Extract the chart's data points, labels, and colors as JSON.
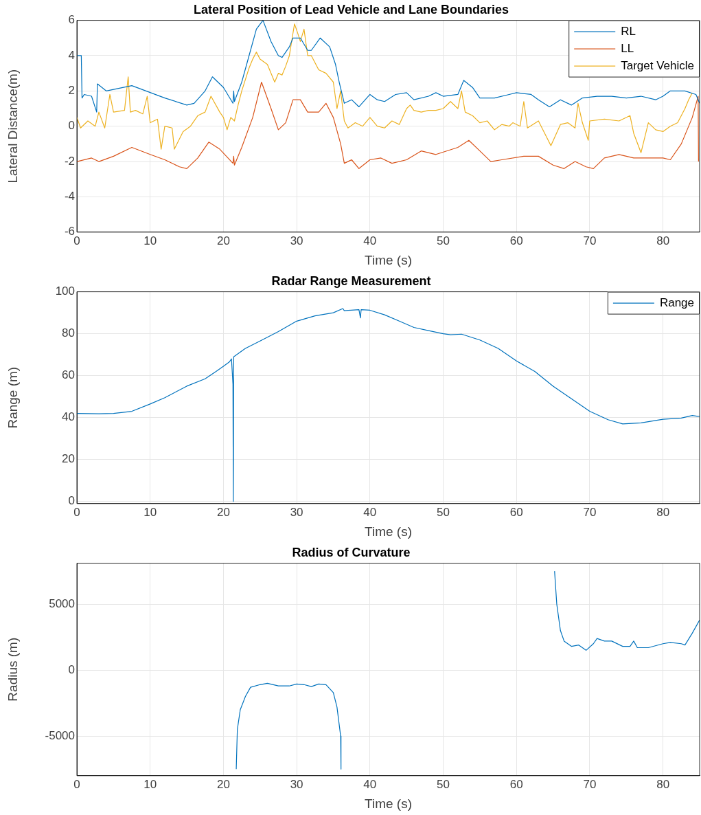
{
  "chart_data": [
    {
      "type": "line",
      "title": "Lateral Position of Lead Vehicle and Lane Boundaries",
      "xlabel": "Time (s)",
      "ylabel": "Lateral Distance(m)",
      "xlim": [
        0,
        85
      ],
      "xticks": [
        0,
        10,
        20,
        30,
        40,
        50,
        60,
        70,
        80
      ],
      "ylim": [
        -6,
        6
      ],
      "yticks": [
        -6,
        -4,
        -2,
        0,
        2,
        4,
        6
      ],
      "grid": true,
      "legend": "top right",
      "series": [
        {
          "name": "RL",
          "color": "#0072bd",
          "x": [
            0,
            0.6,
            0.7,
            1,
            2,
            2.7,
            2.8,
            4,
            7.5,
            12,
            15,
            16,
            17.5,
            18.5,
            20,
            21.3,
            21.4,
            21.5,
            22.5,
            23.5,
            24.5,
            25.4,
            26.5,
            27.5,
            28,
            29,
            29.5,
            30.5,
            31.5,
            32,
            33.2,
            34.5,
            35.3,
            35.8,
            36.5,
            37.5,
            38.5,
            40,
            41,
            42,
            43.5,
            45,
            46,
            48,
            49,
            50,
            52,
            52.8,
            54,
            55,
            57,
            59,
            60,
            62,
            63,
            64.5,
            66,
            67.5,
            69,
            71,
            73,
            75,
            77,
            79,
            80,
            81,
            83,
            84.5,
            85
          ],
          "values": [
            4,
            4,
            1.6,
            1.8,
            1.7,
            0.8,
            2.4,
            2,
            2.3,
            1.6,
            1.2,
            1.3,
            2,
            2.8,
            2.2,
            1.3,
            2,
            1.4,
            2.5,
            4,
            5.5,
            6,
            4.8,
            4,
            3.9,
            4.5,
            5,
            5,
            4.3,
            4.3,
            5,
            4.5,
            3.5,
            2.5,
            1.3,
            1.5,
            1.1,
            1.8,
            1.5,
            1.4,
            1.8,
            1.9,
            1.5,
            1.7,
            1.9,
            1.7,
            1.8,
            2.6,
            2.2,
            1.6,
            1.6,
            1.8,
            1.9,
            1.8,
            1.5,
            1.1,
            1.5,
            1.2,
            1.6,
            1.7,
            1.7,
            1.6,
            1.7,
            1.5,
            1.7,
            2,
            2,
            1.8,
            1.3
          ]
        },
        {
          "name": "LL",
          "color": "#d95319",
          "x": [
            0,
            2,
            3,
            5,
            7.5,
            10,
            12,
            14,
            15,
            16.5,
            18,
            19.5,
            21.3,
            21.4,
            21.5,
            22.5,
            24,
            25.2,
            26.5,
            27.5,
            28.5,
            29.5,
            30.5,
            31.5,
            33,
            34,
            35,
            36,
            36.5,
            37.5,
            38.5,
            40,
            41.5,
            43,
            45,
            47,
            49,
            52,
            53.5,
            55,
            56.5,
            58,
            61,
            63,
            65,
            66.5,
            68,
            69.5,
            70.5,
            72,
            74,
            76,
            78,
            80,
            81,
            82.5,
            84,
            84.8,
            84.85
          ],
          "values": [
            -2,
            -1.8,
            -2,
            -1.7,
            -1.2,
            -1.6,
            -1.9,
            -2.3,
            -2.4,
            -1.8,
            -0.9,
            -1.3,
            -2.1,
            -1.7,
            -2.2,
            -1.2,
            0.5,
            2.5,
            1,
            -0.2,
            0.2,
            1.5,
            1.5,
            0.8,
            0.8,
            1.3,
            0.5,
            -1,
            -2.1,
            -1.9,
            -2.4,
            -1.9,
            -1.8,
            -2.1,
            -1.9,
            -1.4,
            -1.6,
            -1.2,
            -0.8,
            -1.4,
            -2,
            -1.9,
            -1.7,
            -1.7,
            -2.2,
            -2.4,
            -2,
            -2.3,
            -2.4,
            -1.8,
            -1.6,
            -1.8,
            -1.8,
            -1.8,
            -1.9,
            -1,
            0.5,
            1.7,
            -2
          ]
        },
        {
          "name": "Target Vehicle",
          "color": "#edb120",
          "x": [
            0,
            0.5,
            1.5,
            2.5,
            3,
            3.8,
            4.5,
            5,
            6.5,
            7,
            7.3,
            8,
            9,
            9.6,
            10,
            11,
            11.5,
            12,
            13,
            13.3,
            14.5,
            15.5,
            16.5,
            17.5,
            18.3,
            19.5,
            20,
            20.5,
            21,
            21.5,
            22,
            22.5,
            23.5,
            24,
            24.5,
            25,
            26,
            27,
            27.5,
            28,
            28.5,
            29,
            29.7,
            30.2,
            30.5,
            31,
            31.5,
            32,
            33,
            34,
            35,
            35.5,
            36,
            36.5,
            37,
            38,
            39,
            40,
            41,
            42,
            43,
            44,
            45,
            45.5,
            46,
            47,
            48,
            49,
            50,
            51,
            52,
            52.5,
            53,
            54,
            55,
            56,
            57,
            58,
            59,
            59.5,
            60.5,
            61,
            61.5,
            63,
            64.7,
            66,
            67,
            68,
            68.4,
            69,
            69.8,
            70,
            72,
            74,
            75.5,
            76,
            77,
            78,
            79,
            80,
            81,
            82,
            83,
            83.5,
            84
          ],
          "values": [
            0.5,
            -0.1,
            0.3,
            0,
            0.8,
            -0.1,
            1.8,
            0.8,
            0.9,
            2.8,
            0.8,
            0.9,
            0.7,
            1.7,
            0.2,
            0.4,
            -1.3,
            0,
            -0.1,
            -1.3,
            -0.3,
            0,
            0.6,
            0.8,
            1.7,
            0.8,
            0.5,
            -0.2,
            0.5,
            0.3,
            1.2,
            2,
            3.3,
            3.8,
            4.2,
            3.8,
            3.5,
            2.5,
            3,
            2.9,
            3.4,
            4,
            5.8,
            5.2,
            4.8,
            5.5,
            4,
            4,
            3.2,
            3,
            2.5,
            1,
            2,
            0.3,
            -0.1,
            0.2,
            0,
            0.5,
            0,
            -0.1,
            0.3,
            0.1,
            1,
            1.2,
            0.9,
            0.8,
            0.9,
            0.9,
            1,
            1.4,
            1,
            2,
            0.8,
            0.6,
            0.2,
            0.3,
            -0.2,
            0.1,
            0,
            0.2,
            0,
            1.4,
            -0.1,
            0.3,
            -1.1,
            0.1,
            0.2,
            -0.1,
            1.3,
            0.2,
            -0.8,
            0.3,
            0.4,
            0.3,
            0.6,
            -0.4,
            -1.5,
            0.2,
            -0.2,
            -0.3,
            0,
            0.2,
            1,
            1.5,
            1.9
          ]
        }
      ]
    },
    {
      "type": "line",
      "title": "Radar Range Measurement",
      "xlabel": "Time (s)",
      "ylabel": "Range (m)",
      "xlim": [
        0,
        85
      ],
      "xticks": [
        0,
        10,
        20,
        30,
        40,
        50,
        60,
        70,
        80
      ],
      "ylim": [
        -1,
        100
      ],
      "yticks": [
        0,
        20,
        40,
        60,
        80,
        100
      ],
      "grid": true,
      "legend": "top right",
      "series": [
        {
          "name": "Range",
          "color": "#0072bd",
          "x": [
            0,
            3,
            5,
            7.5,
            10,
            12,
            15,
            17.5,
            19,
            20,
            20.8,
            21.1,
            21.3,
            21.35,
            21.4,
            23,
            25,
            27.5,
            30,
            32.5,
            35,
            36.3,
            36.5,
            38.5,
            38.7,
            38.8,
            40,
            42,
            44,
            46,
            48,
            50,
            51,
            52.5,
            55,
            57.5,
            60,
            62.5,
            65,
            67.5,
            70,
            72.5,
            74.5,
            77,
            80,
            82.5,
            84,
            85
          ],
          "values": [
            42,
            41.8,
            42,
            43,
            46.5,
            49.5,
            55,
            58.5,
            62,
            64.5,
            66.5,
            68,
            56,
            0,
            69,
            73,
            76.5,
            81,
            86,
            88.5,
            90,
            92,
            91,
            91.5,
            87.5,
            91.5,
            91.2,
            89,
            86,
            83,
            81.5,
            80,
            79.5,
            79.8,
            77,
            73,
            67,
            62,
            55,
            49,
            43,
            39,
            37,
            37.5,
            39.2,
            39.8,
            41,
            40.5
          ]
        }
      ]
    },
    {
      "type": "line",
      "title": "Radius of Curvature",
      "xlabel": "Time (s)",
      "ylabel": "Radius (m)",
      "xlim": [
        0,
        85
      ],
      "xticks": [
        0,
        10,
        20,
        30,
        40,
        50,
        60,
        70,
        80
      ],
      "ylim": [
        -8000,
        8100
      ],
      "yticks": [
        -5000,
        0,
        5000
      ],
      "grid": true,
      "series": [
        {
          "color": "#0072bd",
          "x": [
            21.75,
            21.9,
            22.3,
            23,
            23.7,
            25,
            26,
            27.5,
            29,
            30,
            31,
            32,
            33,
            34,
            35,
            35.5,
            36,
            36.05,
            50,
            65.2,
            65.5,
            66,
            66.5,
            67.5,
            68.5,
            69.5,
            70.5,
            71,
            72,
            73,
            74.5,
            75.5,
            76,
            76.5,
            78,
            80,
            81,
            82.5,
            83,
            84,
            85
          ],
          "values": [
            -7500,
            -4500,
            -3000,
            -2000,
            -1300,
            -1100,
            -1000,
            -1200,
            -1200,
            -1050,
            -1100,
            -1250,
            -1050,
            -1100,
            -1700,
            -2800,
            -5000,
            -7500,
            null,
            7500,
            5000,
            3000,
            2200,
            1800,
            1900,
            1500,
            2000,
            2400,
            2200,
            2200,
            1800,
            1800,
            2200,
            1700,
            1700,
            2000,
            2100,
            2000,
            1900,
            2800,
            3800
          ]
        }
      ]
    }
  ]
}
